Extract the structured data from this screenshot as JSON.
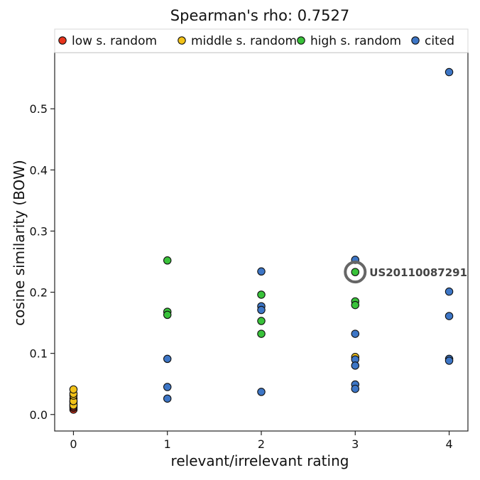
{
  "chart_data": {
    "type": "scatter",
    "title": "Spearman's rho: 0.7527",
    "xlabel": "relevant/irrelevant rating",
    "ylabel": "cosine similarity (BOW)",
    "xlim": [
      -0.2,
      4.2
    ],
    "ylim": [
      -0.027,
      0.592
    ],
    "xticks": [
      0,
      1,
      2,
      3,
      4
    ],
    "yticks": [
      0.0,
      0.1,
      0.2,
      0.3,
      0.4,
      0.5
    ],
    "ytick_labels": [
      "0.0",
      "0.1",
      "0.2",
      "0.3",
      "0.4",
      "0.5"
    ],
    "legend_position": "top",
    "series": [
      {
        "name": "low s. random",
        "color": "#e8341c",
        "points": [
          [
            0,
            0.008
          ],
          [
            0,
            0.011
          ],
          [
            0,
            0.013
          ],
          [
            0,
            0.016
          ],
          [
            0,
            0.019
          ],
          [
            0,
            0.022
          ],
          [
            0,
            0.026
          ]
        ]
      },
      {
        "name": "middle s. random",
        "color": "#f2c218",
        "points": [
          [
            0,
            0.015
          ],
          [
            0,
            0.022
          ],
          [
            0,
            0.031
          ],
          [
            0,
            0.034
          ],
          [
            0,
            0.041
          ],
          [
            3,
            0.094
          ]
        ]
      },
      {
        "name": "high s. random",
        "color": "#39c23a",
        "points": [
          [
            1,
            0.252
          ],
          [
            1,
            0.168
          ],
          [
            1,
            0.163
          ],
          [
            2,
            0.196
          ],
          [
            2,
            0.153
          ],
          [
            2,
            0.132
          ],
          [
            3,
            0.233
          ],
          [
            3,
            0.185
          ],
          [
            3,
            0.179
          ]
        ]
      },
      {
        "name": "cited",
        "color": "#3d76c6",
        "points": [
          [
            1,
            0.091
          ],
          [
            1,
            0.045
          ],
          [
            1,
            0.026
          ],
          [
            2,
            0.234
          ],
          [
            2,
            0.177
          ],
          [
            2,
            0.171
          ],
          [
            2,
            0.037
          ],
          [
            3,
            0.253
          ],
          [
            3,
            0.132
          ],
          [
            3,
            0.09
          ],
          [
            3,
            0.08
          ],
          [
            3,
            0.049
          ],
          [
            3,
            0.042
          ],
          [
            4,
            0.56
          ],
          [
            4,
            0.201
          ],
          [
            4,
            0.161
          ],
          [
            4,
            0.091
          ],
          [
            4,
            0.088
          ]
        ]
      }
    ],
    "annotations": [
      {
        "text": "US20110087291",
        "x": 3,
        "y": 0.233,
        "highlight": "circle"
      }
    ]
  }
}
